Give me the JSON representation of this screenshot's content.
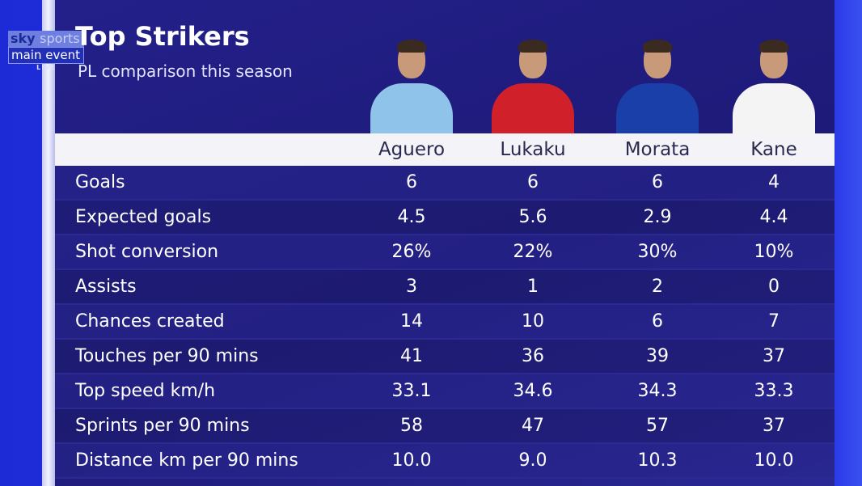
{
  "broadcaster": {
    "line1a": "sky",
    "line1b": "sports",
    "line2": "main event",
    "line3": "LIVE"
  },
  "title": "Top Strikers",
  "subtitle": "PL comparison this season",
  "colors": {
    "panel": "#1e1a78",
    "background": "#1d2bd6",
    "header": "#f4f4f8"
  },
  "players": [
    {
      "name": "Aguero",
      "shirt": "#8fc3ea"
    },
    {
      "name": "Lukaku",
      "shirt": "#d0202a"
    },
    {
      "name": "Morata",
      "shirt": "#1a3fa8"
    },
    {
      "name": "Kane",
      "shirt": "#f4f4f4"
    }
  ],
  "rows": [
    {
      "label": "Goals",
      "values": [
        "6",
        "6",
        "6",
        "4"
      ]
    },
    {
      "label": "Expected goals",
      "values": [
        "4.5",
        "5.6",
        "2.9",
        "4.4"
      ]
    },
    {
      "label": "Shot conversion",
      "values": [
        "26%",
        "22%",
        "30%",
        "10%"
      ]
    },
    {
      "label": "Assists",
      "values": [
        "3",
        "1",
        "2",
        "0"
      ]
    },
    {
      "label": "Chances created",
      "values": [
        "14",
        "10",
        "6",
        "7"
      ]
    },
    {
      "label": "Touches per 90 mins",
      "values": [
        "41",
        "36",
        "39",
        "37"
      ]
    },
    {
      "label": "Top speed km/h",
      "values": [
        "33.1",
        "34.6",
        "34.3",
        "33.3"
      ]
    },
    {
      "label": "Sprints per 90 mins",
      "values": [
        "58",
        "47",
        "57",
        "37"
      ]
    },
    {
      "label": "Distance km per 90 mins",
      "values": [
        "10.0",
        "9.0",
        "10.3",
        "10.0"
      ]
    }
  ]
}
